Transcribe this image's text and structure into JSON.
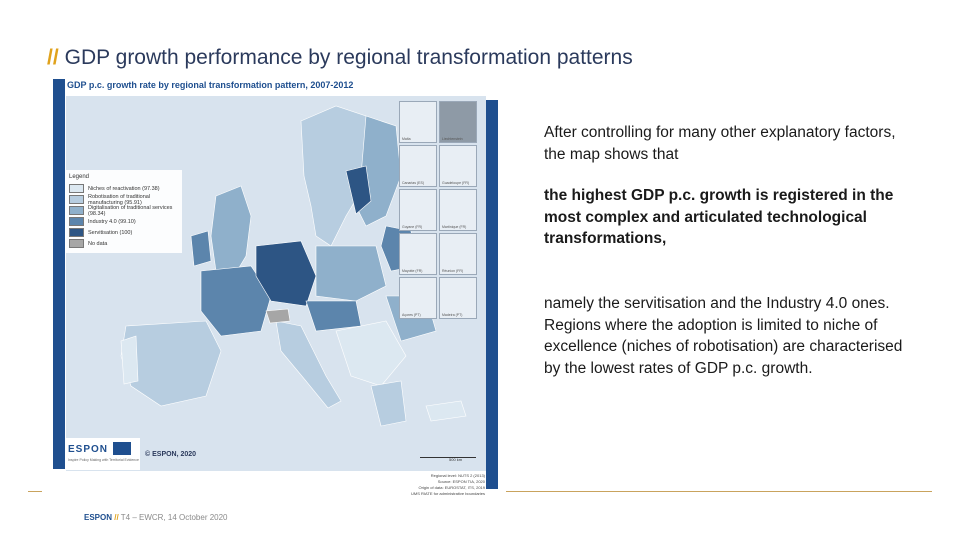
{
  "slide": {
    "title_prefix": "//",
    "title": "GDP growth performance by regional transformation patterns"
  },
  "map": {
    "title": "GDP p.c. growth rate by regional transformation pattern, 2007-2012",
    "legend_title": "Legend",
    "legend": [
      {
        "label": "Niches of reactivation (97.38)",
        "color": "#dce8f1"
      },
      {
        "label": "Robotisation of traditional manufacturing (95.91)",
        "color": "#b7cde0"
      },
      {
        "label": "Digitalisation of traditional services (98.34)",
        "color": "#8fb0cb"
      },
      {
        "label": "Industry 4.0 (99.10)",
        "color": "#5c85ac"
      },
      {
        "label": "Servitisation (100)",
        "color": "#2d5584"
      },
      {
        "label": "No data",
        "color": "#a6a6a6"
      }
    ],
    "insets": [
      {
        "label": "Malta"
      },
      {
        "label": "Liechtenstein"
      },
      {
        "label": "Canarias (ES)"
      },
      {
        "label": "Guadeloupe (FR)"
      },
      {
        "label": "Guyane (FR)"
      },
      {
        "label": "Martinique (FR)"
      },
      {
        "label": "Mayotte (FR)"
      },
      {
        "label": "Réunion (FR)"
      },
      {
        "label": "Açores (PT)"
      },
      {
        "label": "Madeira (PT)"
      }
    ],
    "logo_text": "ESPON",
    "logo_tagline": "Inspire Policy Making with Territorial Evidence",
    "copyright": "© ESPON, 2020",
    "scale_label": "500 km",
    "meta_lines": [
      "Regional level: NUTS 2 (2013)",
      "Source: ESPON TIA, 2020",
      "Origin of data: EUROSTAT, ITS, 2019",
      "UMS RIATE for administrative boundaries"
    ]
  },
  "body": {
    "para1": "After controlling for many other explanatory factors, the map shows that",
    "para2": "the highest GDP p.c. growth is registered in the most complex and articulated technological transformations,",
    "para3": "namely the servitisation and the Industry 4.0 ones. Regions where the adoption is limited to niche of excellence (niches of robotisation) are characterised by the lowest rates of GDP p.c. growth."
  },
  "footer": {
    "brand": "ESPON",
    "sep": "//",
    "text": "T4 – EWCR, 14 October 2020"
  },
  "colors": {
    "accent_gold": "#e0a21c",
    "brand_blue": "#1f4f8f",
    "title_navy": "#2b3a5c"
  }
}
